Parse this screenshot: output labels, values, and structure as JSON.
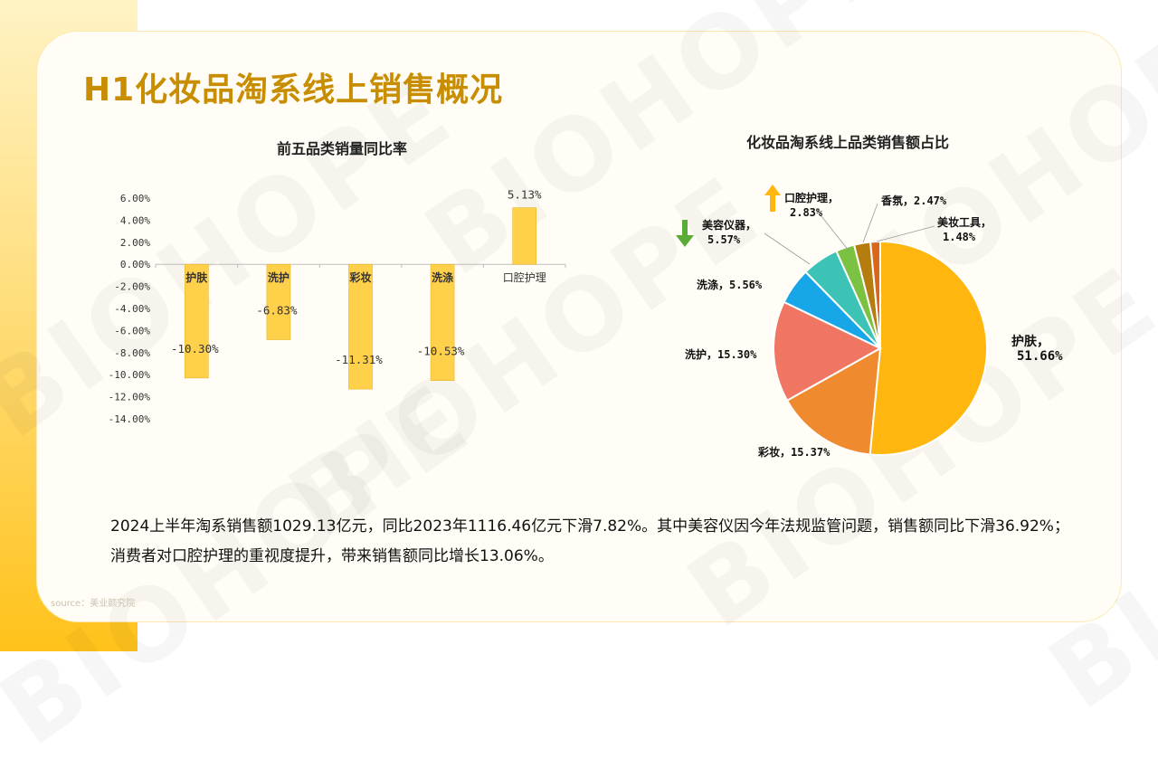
{
  "page": {
    "title": "H1化妆品淘系线上销售概况",
    "watermark": "BIOHOPE",
    "summary": "2024上半年淘系销售额1029.13亿元，同比2023年1116.46亿元下滑7.82%。其中美容仪因今年法规监管问题，销售额同比下滑36.92%；消费者对口腔护理的重视度提升，带来销售额同比增长13.06%。",
    "source": "source：美业颜究院"
  },
  "chart_data": [
    {
      "type": "bar",
      "title": "前五品类销量同比率",
      "categories": [
        "护肤",
        "洗护",
        "彩妆",
        "洗涤",
        "口腔护理"
      ],
      "values": [
        -10.3,
        -6.83,
        -11.31,
        -10.53,
        5.13
      ],
      "value_labels": [
        "-10.30%",
        "-6.83%",
        "-11.31%",
        "-10.53%",
        "5.13%"
      ],
      "ylim": [
        -14,
        6
      ],
      "yticks": [
        6,
        4,
        2,
        0,
        -2,
        -4,
        -6,
        -8,
        -10,
        -12,
        -14
      ],
      "ytick_labels": [
        "6.00%",
        "4.00%",
        "2.00%",
        "0.00%",
        "-2.00%",
        "-4.00%",
        "-6.00%",
        "-8.00%",
        "-10.00%",
        "-12.00%",
        "-14.00%"
      ],
      "xlabel": "",
      "ylabel": "",
      "bar_color": "#ffd04a"
    },
    {
      "type": "pie",
      "title": "化妆品淘系线上品类销售额占比",
      "slices": [
        {
          "name": "护肤",
          "value": 51.66,
          "label": "护肤，\n51.66%",
          "color": "#ffb70f"
        },
        {
          "name": "彩妆",
          "value": 15.37,
          "label": "彩妆，15.37%",
          "color": "#f08a2e"
        },
        {
          "name": "洗护",
          "value": 15.3,
          "label": "洗护，15.30%",
          "color": "#f07663"
        },
        {
          "name": "洗涤",
          "value": 5.56,
          "label": "洗涤，5.56%",
          "color": "#17a6e8"
        },
        {
          "name": "美容仪器",
          "value": 5.57,
          "label": "美容仪器，\n5.57%",
          "color": "#3cc3b5"
        },
        {
          "name": "口腔护理",
          "value": 2.83,
          "label": "口腔护理，\n2.83%",
          "color": "#7cc242"
        },
        {
          "name": "香氛",
          "value": 2.47,
          "label": "香氛，2.47%",
          "color": "#b57c10"
        },
        {
          "name": "美妆工具",
          "value": 1.48,
          "label": "美妆工具，\n1.48%",
          "color": "#d9661a"
        }
      ],
      "annotations": [
        {
          "target": "口腔护理",
          "icon": "arrow-up-icon",
          "color": "#ffb70f"
        },
        {
          "target": "美容仪器",
          "icon": "arrow-down-icon",
          "color": "#5aac36"
        }
      ]
    }
  ]
}
